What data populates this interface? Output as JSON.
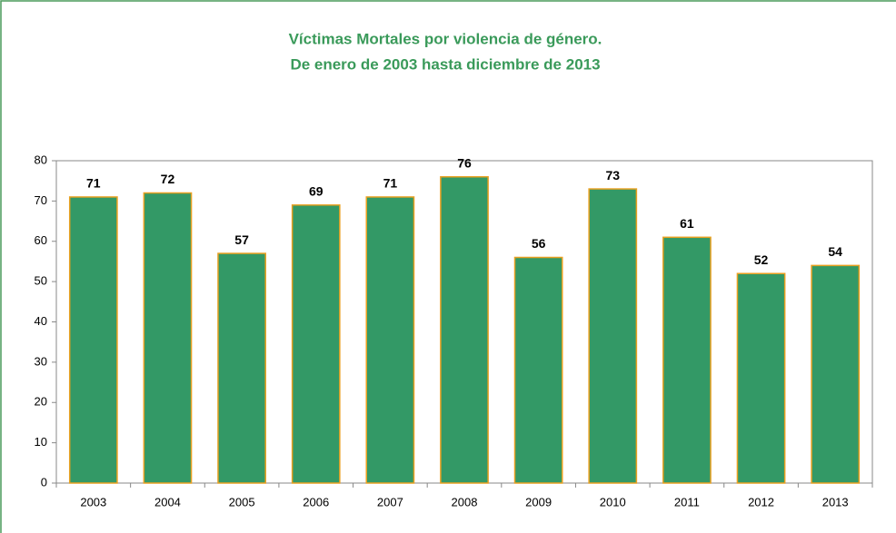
{
  "chart_data": {
    "type": "bar",
    "title": "Víctimas Mortales por violencia de género.",
    "subtitle": "De enero de 2003 hasta diciembre de 2013",
    "categories": [
      "2003",
      "2004",
      "2005",
      "2006",
      "2007",
      "2008",
      "2009",
      "2010",
      "2011",
      "2012",
      "2013"
    ],
    "values": [
      71,
      72,
      57,
      69,
      71,
      76,
      56,
      73,
      61,
      52,
      54
    ],
    "color": "#339966",
    "edge_color": "#e8a020",
    "ylim": [
      0,
      80
    ],
    "yticks": [
      0,
      10,
      20,
      30,
      40,
      50,
      60,
      70,
      80
    ],
    "grid": false
  }
}
